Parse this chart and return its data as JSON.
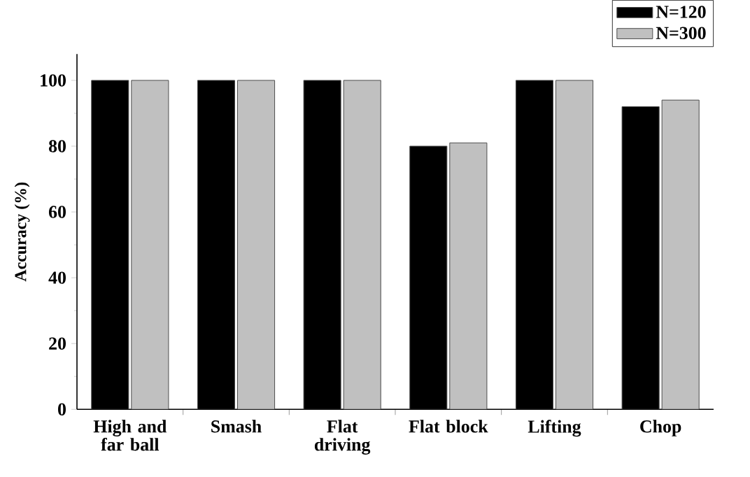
{
  "chart_data": {
    "type": "bar",
    "ylabel": "Accuracy (%)",
    "categories": [
      "High and far ball",
      "Smash",
      "Flat driving",
      "Flat block",
      "Lifting",
      "Chop"
    ],
    "series": [
      {
        "name": "N=120",
        "color": "#000000",
        "values": [
          100,
          100,
          100,
          80,
          100,
          92
        ]
      },
      {
        "name": "N=300",
        "color": "#c0c0c0",
        "values": [
          100,
          100,
          100,
          81,
          100,
          94
        ]
      }
    ],
    "ylim": [
      0,
      108
    ],
    "yticks": [
      0,
      20,
      40,
      60,
      80,
      100
    ],
    "grid": false,
    "legend": "top right"
  }
}
